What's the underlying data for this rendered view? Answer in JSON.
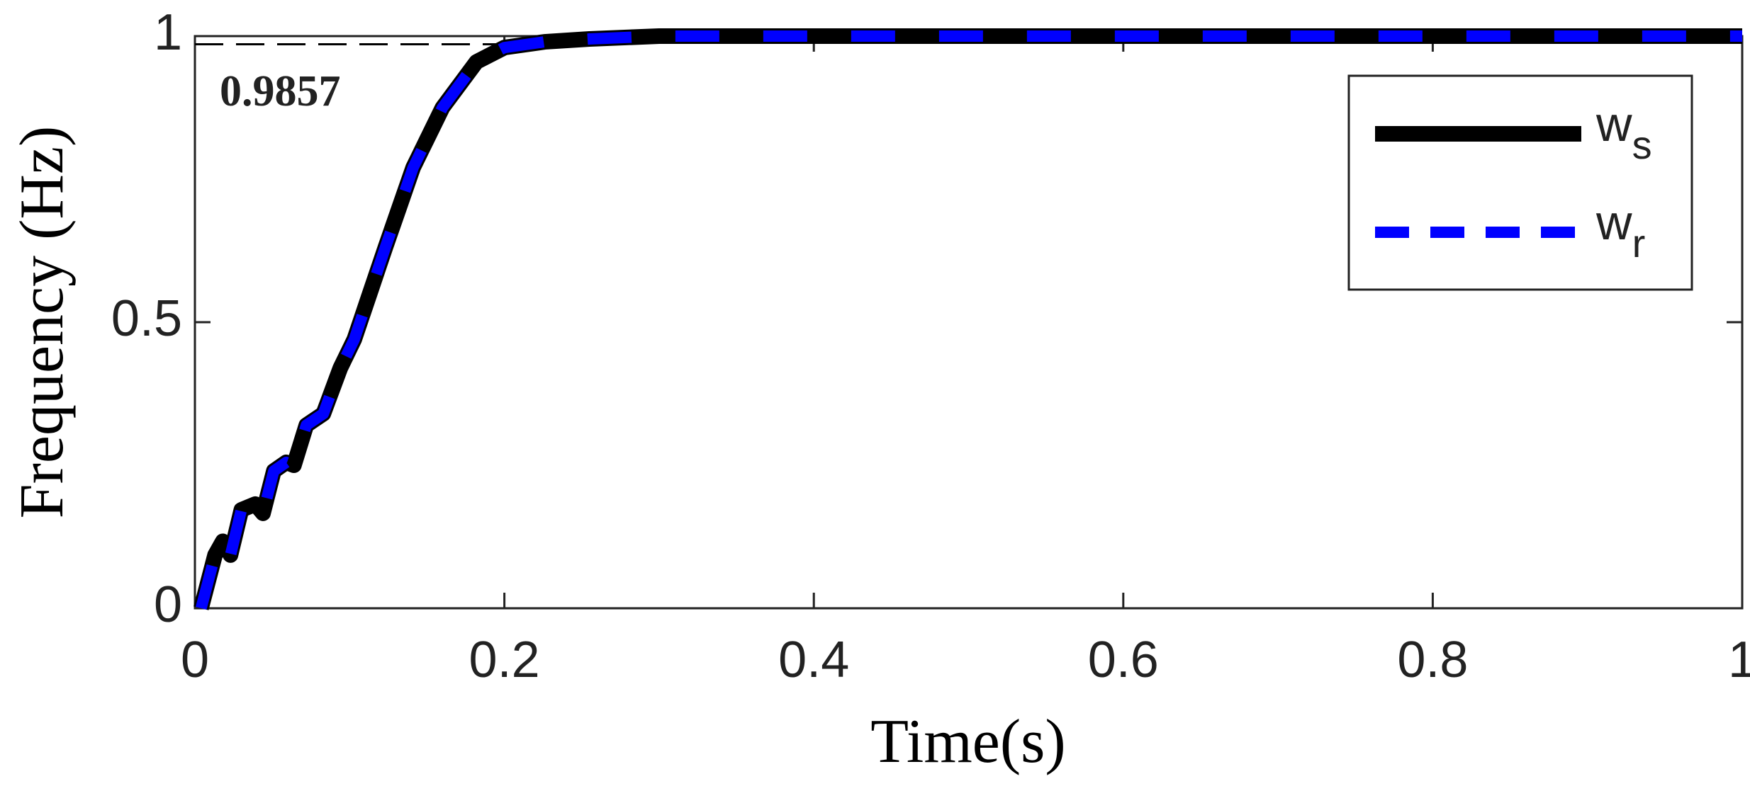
{
  "chart_data": {
    "type": "line",
    "xlabel": "Time(s)",
    "ylabel": "Frequency (Hz)",
    "annotation": 0.9857,
    "x": [
      0.004,
      0.013,
      0.018,
      0.023,
      0.03,
      0.039,
      0.044,
      0.051,
      0.059,
      0.064,
      0.072,
      0.083,
      0.094,
      0.103,
      0.123,
      0.141,
      0.16,
      0.182,
      0.2,
      0.226,
      0.255,
      0.3,
      1.0
    ],
    "series": [
      {
        "name": "ws",
        "color": "#000000",
        "style": "solid",
        "values": [
          0,
          0.093,
          0.117,
          0.093,
          0.172,
          0.182,
          0.166,
          0.24,
          0.255,
          0.25,
          0.32,
          0.34,
          0.42,
          0.47,
          0.63,
          0.77,
          0.875,
          0.955,
          0.98,
          0.99,
          0.995,
          1.0,
          1.0
        ]
      },
      {
        "name": "wr",
        "color": "#0000ff",
        "style": "dashed",
        "values": [
          0,
          0.093,
          0.117,
          0.093,
          0.172,
          0.182,
          0.166,
          0.24,
          0.255,
          0.25,
          0.32,
          0.34,
          0.42,
          0.47,
          0.63,
          0.77,
          0.875,
          0.955,
          0.98,
          0.99,
          0.995,
          1.0,
          1.0
        ]
      }
    ],
    "xlim": [
      0,
      1
    ],
    "xticks": [
      0,
      0.2,
      0.4,
      0.6,
      0.8,
      1
    ],
    "ylim": [
      0,
      1
    ],
    "yticks": [
      0,
      0.5,
      1
    ],
    "grid": false,
    "legend": "upper right"
  }
}
